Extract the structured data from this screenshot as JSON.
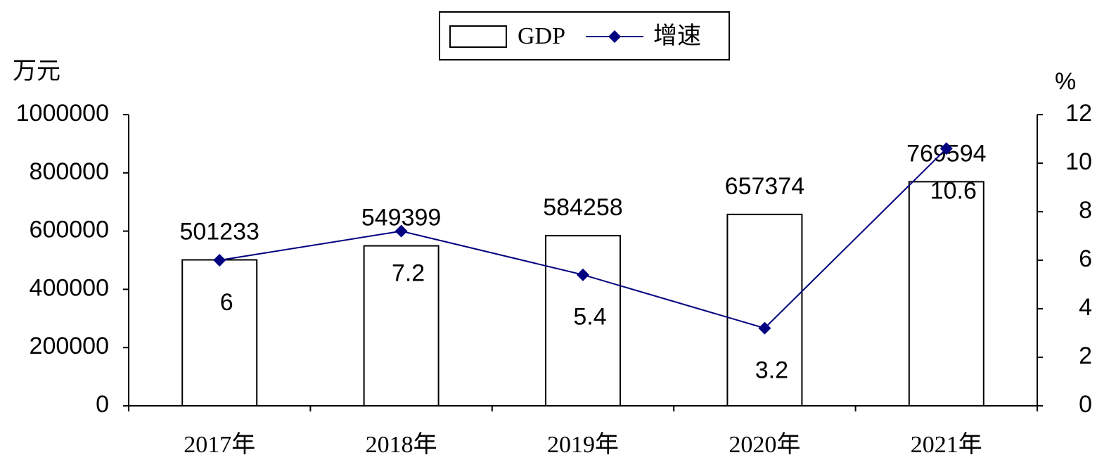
{
  "chart_data": {
    "type": "bar",
    "ylabel": "万元",
    "y2label": "%",
    "categories": [
      "2017年",
      "2018年",
      "2019年",
      "2020年",
      "2021年"
    ],
    "series": [
      {
        "name": "GDP",
        "type": "bar",
        "color": "#ffffff",
        "values": [
          501233,
          549399,
          584258,
          657374,
          769594
        ]
      },
      {
        "name": "增速",
        "type": "line",
        "axis": "y2",
        "color": "#000080",
        "values": [
          6,
          7.2,
          5.4,
          3.2,
          10.6
        ]
      }
    ],
    "ylim": [
      0,
      1000000
    ],
    "yticks": [
      0,
      200000,
      400000,
      600000,
      800000,
      1000000
    ],
    "y2lim": [
      0,
      12
    ],
    "y2ticks": [
      0,
      2,
      4,
      6,
      8,
      10,
      12
    ],
    "legend": "top"
  }
}
